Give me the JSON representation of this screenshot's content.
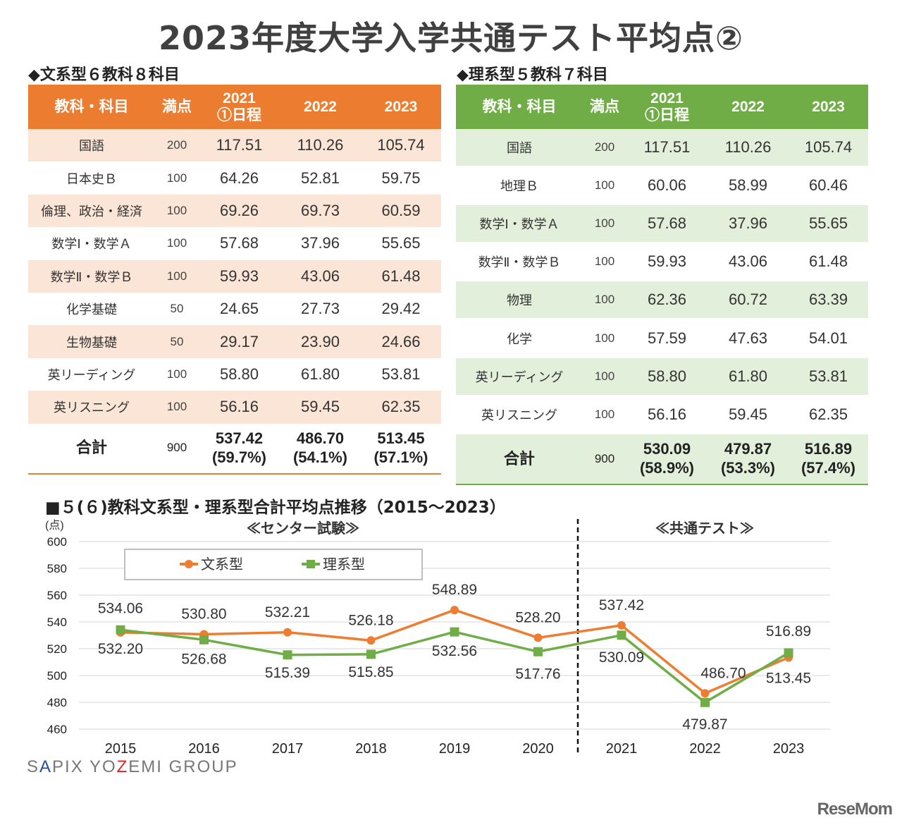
{
  "title": "2023年度大学入学共通テスト平均点②",
  "left_table": {
    "heading": "◆文系型６教科８科目",
    "color": "#ec7c30",
    "headers": [
      "教科・科目",
      "満点",
      "2021\n①日程",
      "2022",
      "2023"
    ],
    "rows": [
      [
        "国語",
        "200",
        "117.51",
        "110.26",
        "105.74"
      ],
      [
        "日本史Ｂ",
        "100",
        "64.26",
        "52.81",
        "59.75"
      ],
      [
        "倫理、政治・経済",
        "100",
        "69.26",
        "69.73",
        "60.59"
      ],
      [
        "数学Ⅰ・数学Ａ",
        "100",
        "57.68",
        "37.96",
        "55.65"
      ],
      [
        "数学Ⅱ・数学Ｂ",
        "100",
        "59.93",
        "43.06",
        "61.48"
      ],
      [
        "化学基礎",
        "50",
        "24.65",
        "27.73",
        "29.42"
      ],
      [
        "生物基礎",
        "50",
        "29.17",
        "23.90",
        "24.66"
      ],
      [
        "英リーディング",
        "100",
        "58.80",
        "61.80",
        "53.81"
      ],
      [
        "英リスニング",
        "100",
        "56.16",
        "59.45",
        "62.35"
      ]
    ],
    "total": [
      "合計",
      "900",
      "537.42\n(59.7%)",
      "486.70\n(54.1%)",
      "513.45\n(57.1%)"
    ]
  },
  "right_table": {
    "heading": "◆理系型５教科７科目",
    "color": "#70ad47",
    "headers": [
      "教科・科目",
      "満点",
      "2021\n①日程",
      "2022",
      "2023"
    ],
    "rows": [
      [
        "国語",
        "200",
        "117.51",
        "110.26",
        "105.74"
      ],
      [
        "地理Ｂ",
        "100",
        "60.06",
        "58.99",
        "60.46"
      ],
      [
        "数学Ⅰ・数学Ａ",
        "100",
        "57.68",
        "37.96",
        "55.65"
      ],
      [
        "数学Ⅱ・数学Ｂ",
        "100",
        "59.93",
        "43.06",
        "61.48"
      ],
      [
        "物理",
        "100",
        "62.36",
        "60.72",
        "63.39"
      ],
      [
        "化学",
        "100",
        "57.59",
        "47.63",
        "54.01"
      ],
      [
        "英リーディング",
        "100",
        "58.80",
        "61.80",
        "53.81"
      ],
      [
        "英リスニング",
        "100",
        "56.16",
        "59.45",
        "62.35"
      ]
    ],
    "total": [
      "合計",
      "900",
      "530.09\n(58.9%)",
      "479.87\n(53.3%)",
      "516.89\n(57.4%)"
    ]
  },
  "chart_data": {
    "type": "line",
    "title": "■５(６)教科文系型・理系型合計平均点推移（2015～2023）",
    "ylabel": "(点)",
    "ylim": [
      460,
      600
    ],
    "yticks": [
      460,
      480,
      500,
      520,
      540,
      560,
      580,
      600
    ],
    "categories": [
      "2015",
      "2016",
      "2017",
      "2018",
      "2019",
      "2020",
      "2021",
      "2022",
      "2023"
    ],
    "annotations": {
      "center": "≪センター試験≫",
      "common": "≪共通テスト≫"
    },
    "legend_position": "top-left",
    "grid": true,
    "series": [
      {
        "name": "文系型",
        "color": "#ed7d31",
        "values": [
          532.2,
          530.8,
          532.21,
          526.18,
          548.89,
          528.2,
          537.42,
          486.7,
          513.45
        ]
      },
      {
        "name": "理系型",
        "color": "#70ad47",
        "values": [
          534.06,
          526.68,
          515.39,
          515.85,
          532.56,
          517.76,
          530.09,
          479.87,
          516.89
        ]
      }
    ]
  },
  "brand": "SAPIX YOZEMI GROUP",
  "watermark": "ReseMom"
}
